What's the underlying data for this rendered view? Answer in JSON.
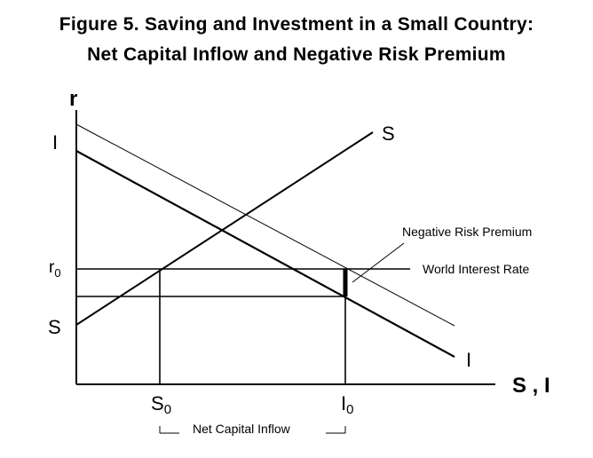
{
  "title_line1": "Figure 5.  Saving and Investment in a Small Country:",
  "title_line2": "Net Capital Inflow and Negative Risk Premium",
  "axes": {
    "y_label": "r",
    "x_label": "S , I"
  },
  "curves": {
    "saving_start": "S",
    "saving_end": "S",
    "investment_start": "I",
    "investment_end": "I"
  },
  "levels": {
    "r0_main": "r",
    "r0_sub": "0",
    "s0_main": "S",
    "s0_sub": "0",
    "i0_main": "I",
    "i0_sub": "0"
  },
  "annotations": {
    "world_interest_rate": "World Interest Rate",
    "negative_risk_premium": "Negative Risk Premium",
    "net_capital_inflow": "Net Capital Inflow"
  }
}
